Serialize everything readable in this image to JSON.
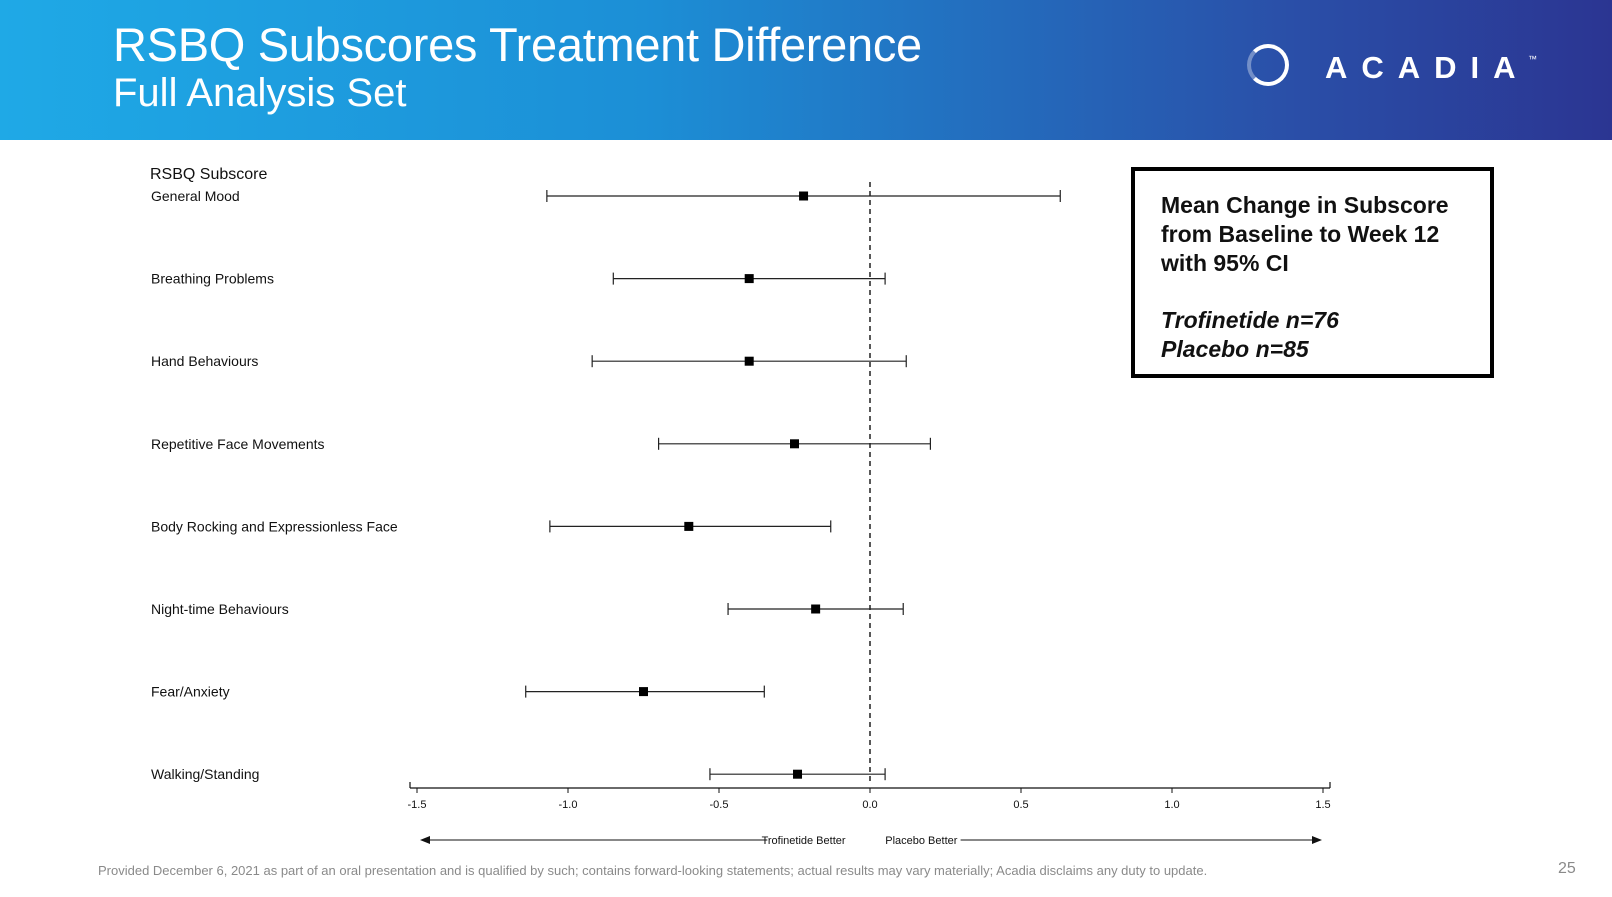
{
  "header": {
    "title": "RSBQ Subscores Treatment Difference",
    "subtitle": "Full Analysis Set",
    "logo_text": "ACADIA",
    "logo_tm": "™",
    "colors": {
      "gradient_start": "#1fa9e6",
      "gradient_end": "#2b3592"
    }
  },
  "chart_data": {
    "type": "forest",
    "row_header": "RSBQ Subscore",
    "reference_line": 0,
    "xlim": [
      -1.5,
      1.5
    ],
    "xticks": [
      -1.5,
      -1.0,
      -0.5,
      0.0,
      0.5,
      1.0,
      1.5
    ],
    "xtick_labels": [
      "-1.5",
      "-1.0",
      "-0.5",
      "0.0",
      "0.5",
      "1.0",
      "1.5"
    ],
    "left_direction_label": "Trofinetide Better",
    "right_direction_label": "Placebo Better",
    "rows": [
      {
        "label": "General Mood",
        "estimate": -0.22,
        "lower": -1.07,
        "upper": 0.63
      },
      {
        "label": "Breathing Problems",
        "estimate": -0.4,
        "lower": -0.85,
        "upper": 0.05
      },
      {
        "label": "Hand Behaviours",
        "estimate": -0.4,
        "lower": -0.92,
        "upper": 0.12
      },
      {
        "label": "Repetitive Face Movements",
        "estimate": -0.25,
        "lower": -0.7,
        "upper": 0.2
      },
      {
        "label": "Body Rocking and Expressionless Face",
        "estimate": -0.6,
        "lower": -1.06,
        "upper": -0.13
      },
      {
        "label": "Night-time Behaviours",
        "estimate": -0.18,
        "lower": -0.47,
        "upper": 0.11
      },
      {
        "label": "Fear/Anxiety",
        "estimate": -0.75,
        "lower": -1.14,
        "upper": -0.35
      },
      {
        "label": "Walking/Standing",
        "estimate": -0.24,
        "lower": -0.53,
        "upper": 0.05
      }
    ]
  },
  "legend_box": {
    "line1": "Mean Change in Subscore",
    "line2": "from Baseline to Week 12",
    "line3": "with 95% CI",
    "treatment": "Trofinetide n=76",
    "placebo": "Placebo n=85"
  },
  "footer": {
    "disclaimer": "Provided December 6, 2021 as part of an oral presentation and is qualified by such; contains forward-looking statements; actual results may vary materially; Acadia disclaims any duty to update.",
    "page_number": "25"
  }
}
